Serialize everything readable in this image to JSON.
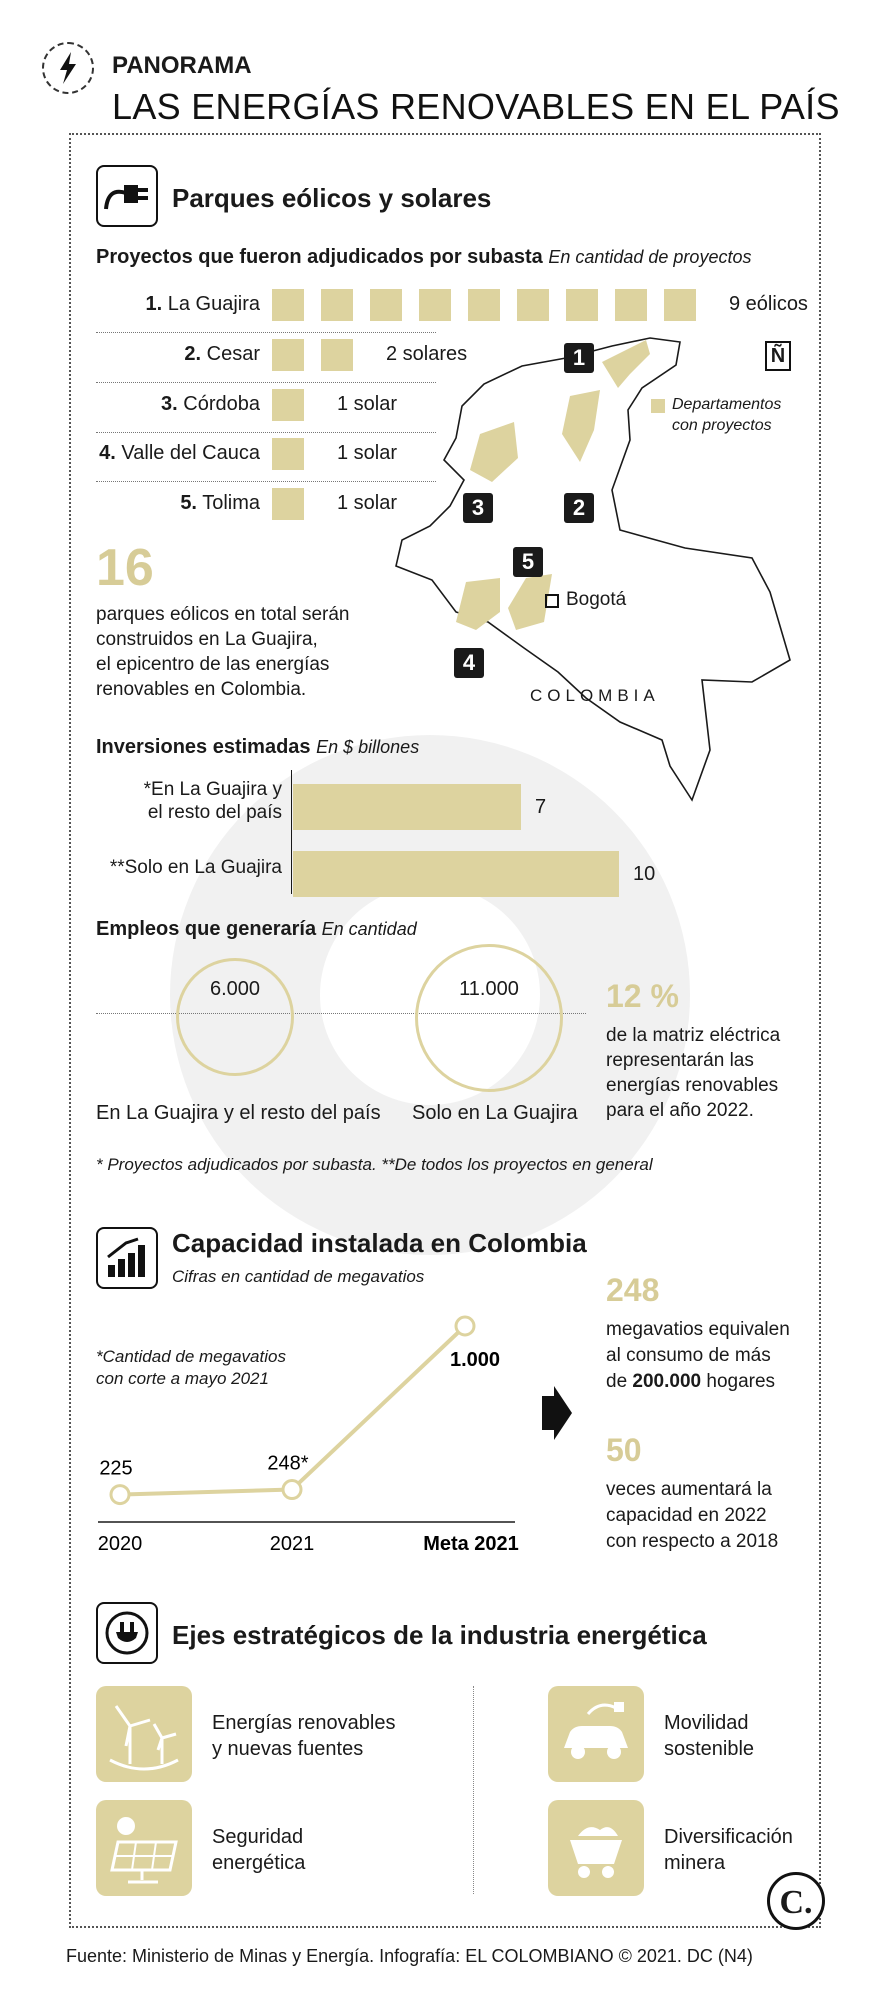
{
  "header": {
    "kicker": "PANORAMA",
    "title": "LAS ENERGÍAS RENOVABLES EN EL PAÍS",
    "icon": "lightning-icon"
  },
  "parks": {
    "title": "Parques eólicos y solares",
    "subtitle_bold": "Proyectos que fueron adjudicados por subasta",
    "subtitle_it": "En cantidad de proyectos",
    "rows": [
      {
        "num": "1.",
        "name": "La Guajira",
        "count": 9,
        "label": "9 eólicos"
      },
      {
        "num": "2.",
        "name": "Cesar",
        "count": 2,
        "label": "2 solares"
      },
      {
        "num": "3.",
        "name": "Córdoba",
        "count": 1,
        "label": "1 solar"
      },
      {
        "num": "4.",
        "name": "Valle del Cauca",
        "count": 1,
        "label": "1 solar"
      },
      {
        "num": "5.",
        "name": "Tolima",
        "count": 1,
        "label": "1 solar"
      }
    ],
    "big_number": "16",
    "big_text_l1": "parques eólicos en total serán",
    "big_text_l2": "construidos en La Guajira,",
    "big_text_l3": "el epicentro de las energías",
    "big_text_l4": "renovables en Colombia."
  },
  "map": {
    "north": "Ñ",
    "legend_l1": "Departamentos",
    "legend_l2": "con proyectos",
    "capital": "Bogotá",
    "country": "COLOMBIA",
    "badges": [
      "1",
      "2",
      "3",
      "4",
      "5"
    ]
  },
  "investments": {
    "title_bold": "Inversiones estimadas",
    "title_it": "En $ billones",
    "bars": [
      {
        "label_l1": "*En La Guajira y",
        "label_l2": "el resto del país",
        "value": 7
      },
      {
        "label_l1": "**Solo en La Guajira",
        "label_l2": "",
        "value": 10
      }
    ]
  },
  "jobs": {
    "title_bold": "Empleos que generaría",
    "title_it": "En cantidad",
    "items": [
      {
        "value": "6.000",
        "label": "En La Guajira y el resto del país"
      },
      {
        "value": "11.000",
        "label": "Solo en La Guajira"
      }
    ],
    "pct": "12 %",
    "pct_l1": "de la matriz eléctrica",
    "pct_l2": "representarán las",
    "pct_l3": "energías renovables",
    "pct_l4": "para el año 2022."
  },
  "footnote": "* Proyectos adjudicados por subasta. **De todos los proyectos en general",
  "capacity": {
    "title": "Capacidad instalada en Colombia",
    "subtitle": "Cifras en cantidad de megavatios",
    "note_l1": "*Cantidad de megavatios",
    "note_l2": "con corte a mayo 2021",
    "chart_data": {
      "type": "line",
      "categories": [
        "2020",
        "2021",
        "Meta 2021"
      ],
      "values": [
        225,
        248,
        1000
      ],
      "value_labels": [
        "225",
        "248*",
        "1.000"
      ]
    },
    "fact1_num": "248",
    "fact1_l1": "megavatios equivalen",
    "fact1_l2": "al consumo de más",
    "fact1_l3a": "de",
    "fact1_l3b": "200.000",
    "fact1_l3c": "hogares",
    "fact2_num": "50",
    "fact2_l1": "veces aumentará la",
    "fact2_l2": "capacidad en 2022",
    "fact2_l3": "con respecto a 2018"
  },
  "axes": {
    "title": "Ejes estratégicos de la industria energética",
    "items": [
      {
        "l1": "Energías renovables",
        "l2": "y nuevas fuentes",
        "icon": "wind-turbine-icon"
      },
      {
        "l1": "Movilidad",
        "l2": "sostenible",
        "icon": "electric-car-icon"
      },
      {
        "l1": "Seguridad",
        "l2": "energética",
        "icon": "solar-panel-icon"
      },
      {
        "l1": "Diversificación",
        "l2": "minera",
        "icon": "mining-cart-icon"
      }
    ]
  },
  "logo": "C.",
  "source": "Fuente: Ministerio de Minas y Energía. Infografía: EL COLOMBIANO © 2021. DC (N4)",
  "colors": {
    "accent": "#ddd39f",
    "text": "#1a1a1a"
  }
}
